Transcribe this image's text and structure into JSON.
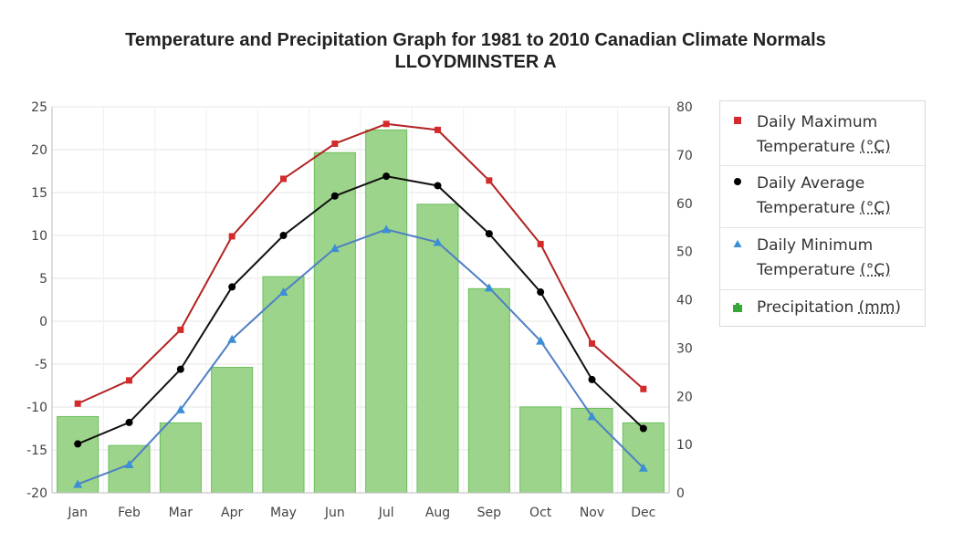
{
  "chart_data": {
    "type": "bar+line",
    "title": "Temperature and Precipitation Graph for 1981 to 2010 Canadian Climate Normals",
    "subtitle": "LLOYDMINSTER A",
    "categories": [
      "Jan",
      "Feb",
      "Mar",
      "Apr",
      "May",
      "Jun",
      "Jul",
      "Aug",
      "Sep",
      "Oct",
      "Nov",
      "Dec"
    ],
    "left_axis": {
      "ylim": [
        -20,
        25
      ],
      "ticks": [
        "25",
        "20",
        "15",
        "10",
        "5",
        "0",
        "-5",
        "-10",
        "-15",
        "-20"
      ]
    },
    "right_axis": {
      "ylim": [
        0,
        80
      ],
      "ticks": [
        "80",
        "70",
        "60",
        "50",
        "40",
        "30",
        "20",
        "10",
        "0"
      ]
    },
    "series": [
      {
        "name": "Daily Maximum Temperature",
        "unit": "(°C)",
        "axis": "left",
        "kind": "line",
        "color": "#b22222",
        "marker": "square",
        "marker_color": "#d42a2a",
        "values": [
          -9.6,
          -6.9,
          -1.0,
          9.9,
          16.6,
          20.7,
          23.0,
          22.3,
          16.4,
          9.0,
          -2.6,
          -7.9
        ]
      },
      {
        "name": "Daily Average Temperature",
        "unit": "(°C)",
        "axis": "left",
        "kind": "line",
        "color": "#111111",
        "marker": "circle",
        "marker_color": "#000000",
        "values": [
          -14.3,
          -11.8,
          -5.6,
          4.0,
          10.0,
          14.6,
          16.9,
          15.8,
          10.2,
          3.4,
          -6.8,
          -12.5
        ]
      },
      {
        "name": "Daily Minimum Temperature",
        "unit": "(°C)",
        "axis": "left",
        "kind": "line",
        "color": "#4f7fc4",
        "marker": "triangle",
        "marker_color": "#3b8fd6",
        "values": [
          -19.0,
          -16.7,
          -10.3,
          -2.1,
          3.4,
          8.5,
          10.7,
          9.2,
          3.9,
          -2.3,
          -11.1,
          -17.1
        ]
      },
      {
        "name": "Precipitation",
        "unit": "(mm)",
        "axis": "right",
        "kind": "bar",
        "color": "#9cd48c",
        "stroke": "#6abf59",
        "marker_color": "#35a835",
        "values": [
          15.8,
          9.8,
          14.5,
          26.0,
          44.8,
          70.5,
          75.2,
          59.8,
          42.3,
          17.8,
          17.5,
          14.5
        ]
      }
    ],
    "legend_position": "right",
    "grid": true
  }
}
